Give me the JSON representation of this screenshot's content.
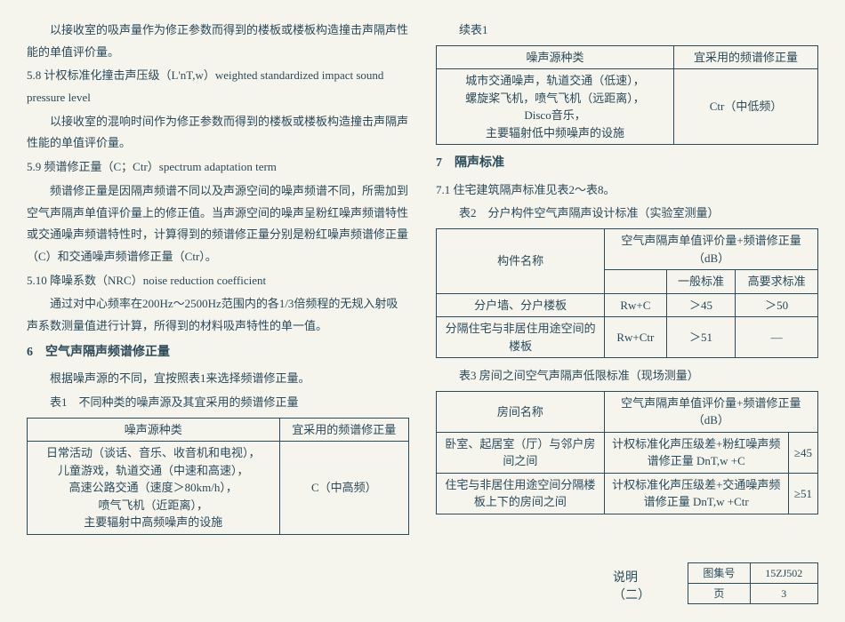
{
  "left": {
    "para1": "以接收室的吸声量作为修正参数而得到的楼板或楼板构造撞击声隔声性能的单值评价量。",
    "sec58_label": "5.8 计权标准化撞击声压级（L'nT,w）weighted standardized impact sound pressure level",
    "sec58_body": "以接收室的混响时间作为修正参数而得到的楼板或楼板构造撞击声隔声性能的单值评价量。",
    "sec59_label": "5.9 频谱修正量（C；Ctr）spectrum adaptation term",
    "sec59_body1": "频谱修正量是因隔声频谱不同以及声源空间的噪声频谱不同，所需加到空气声隔声单值评价量上的修正值。当声源空间的噪声呈粉红噪声频谱特性或交通噪声频谱特性时，计算得到的频谱修正量分别是粉红噪声频谱修正量（C）和交通噪声频谱修正量（Ctr）。",
    "sec510_label": "5.10 降噪系数（NRC）noise reduction coefficient",
    "sec510_body": "通过对中心频率在200Hz～2500Hz范围内的各1/3倍频程的无规入射吸声系数测量值进行计算，所得到的材料吸声特性的单一值。",
    "sec6_title": "6　空气声隔声频谱修正量",
    "sec6_body": "根据噪声源的不同，宜按照表1来选择频谱修正量。",
    "tbl1_caption": "表1　不同种类的噪声源及其宜采用的频谱修正量",
    "tbl1_h1": "噪声源种类",
    "tbl1_h2": "宜采用的频谱修正量",
    "tbl1_r1_lines": [
      "日常活动（谈话、音乐、收音机和电视），",
      "儿童游戏，轨道交通（中速和高速），",
      "高速公路交通（速度＞80km/h），",
      "喷气飞机（近距离），",
      "主要辐射中高频噪声的设施"
    ],
    "tbl1_r1_val": "C（中高频）"
  },
  "right": {
    "cont_caption": "续表1",
    "cont_h1": "噪声源种类",
    "cont_h2": "宜采用的频谱修正量",
    "cont_r1_lines": [
      "城市交通噪声，轨道交通（低速），",
      "螺旋桨飞机，喷气飞机（远距离），",
      "Disco音乐，",
      "主要辐射低中频噪声的设施"
    ],
    "cont_r1_val": "Ctr（中低频）",
    "sec7_title": "7　隔声标准",
    "sec71": "7.1 住宅建筑隔声标准见表2～表8。",
    "tbl2_caption": "表2　分户构件空气声隔声设计标准（实验室测量）",
    "tbl2": {
      "h_component": "构件名称",
      "h_group": "空气声隔声单值评价量+频谱修正量（dB）",
      "h_sub1": "一般标准",
      "h_sub2": "高要求标准",
      "r1_name": "分户墙、分户楼板",
      "r1_param": "Rw+C",
      "r1_v1": "＞45",
      "r1_v2": "＞50",
      "r2_name": "分隔住宅与非居住用途空间的楼板",
      "r2_param": "Rw+Ctr",
      "r2_v1": "＞51",
      "r2_v2": "—"
    },
    "tbl3_caption": "表3 房间之间空气声隔声低限标准（现场测量）",
    "tbl3": {
      "h_room": "房间名称",
      "h_group": "空气声隔声单值评价量+频谱修正量（dB）",
      "r1_name": "卧室、起居室（厅）与邻户房间之间",
      "r1_desc": "计权标准化声压级差+粉红噪声频谱修正量 DnT,w +C",
      "r1_val": "≥45",
      "r2_name": "住宅与非居住用途空间分隔楼板上下的房间之间",
      "r2_desc": "计权标准化声压级差+交通噪声频谱修正量 DnT,w +Ctr",
      "r2_val": "≥51"
    }
  },
  "footer": {
    "title": "说明（二）",
    "atlas_label": "图集号",
    "atlas_val": "15ZJ502",
    "page_label": "页",
    "page_val": "3"
  }
}
